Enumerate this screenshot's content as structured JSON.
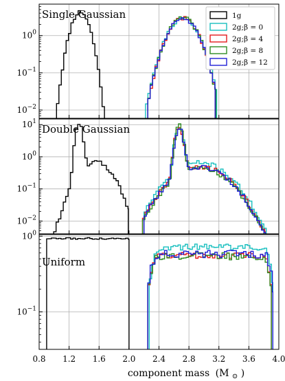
{
  "chart_data": {
    "type": "line",
    "xlabel": "component mass",
    "xlabel_symbol": "(M",
    "xlabel_sub": "⊙",
    "xlabel_close": ")",
    "xlim": [
      0.8,
      4.0
    ],
    "xticks": [
      0.8,
      1.2,
      1.6,
      2.0,
      2.4,
      2.8,
      3.2,
      3.6,
      4.0
    ],
    "xtick_labels": [
      "0.8",
      "1.2",
      "1.6",
      "2.0",
      "2.4",
      "2.8",
      "3.2",
      "3.6",
      "4.0"
    ],
    "yscale": "log",
    "grid": true,
    "sharex": true,
    "legend": {
      "placement": "top-right",
      "entries": [
        {
          "label": "1g",
          "color": "#000000"
        },
        {
          "label": "2g;β = 0",
          "color": "#17bfbf"
        },
        {
          "label": "2g;β = 4",
          "color": "#e31a1c"
        },
        {
          "label": "2g;β = 8",
          "color": "#2e8b22"
        },
        {
          "label": "2g;β = 12",
          "color": "#1f1fd6"
        }
      ]
    },
    "panels": [
      {
        "label": "Single Gaussian",
        "ylim": [
          0.006,
          7
        ],
        "ytick_labels": [
          {
            "value": 1,
            "base": "10",
            "exp": "0"
          },
          {
            "value": 0.1,
            "base": "10",
            "exp": "−1"
          },
          {
            "value": 0.01,
            "base": "10",
            "exp": "−2"
          }
        ],
        "series": [
          {
            "name": "1g",
            "color": "#000000",
            "kind": "gauss",
            "mu": 1.35,
            "sigma": 0.09,
            "amp": 4.4,
            "range": [
              1.0,
              1.72
            ],
            "seed": 11
          },
          {
            "name": "2g;β = 0",
            "color": "#17bfbf",
            "kind": "gauss",
            "mu": 2.72,
            "sigma": 0.15,
            "amp": 2.85,
            "range": [
              2.22,
              3.17
            ],
            "seed": 21
          },
          {
            "name": "2g;β = 4",
            "color": "#e31a1c",
            "kind": "gauss",
            "mu": 2.72,
            "sigma": 0.145,
            "amp": 2.95,
            "range": [
              2.25,
              3.15
            ],
            "seed": 31
          },
          {
            "name": "2g;β = 8",
            "color": "#2e8b22",
            "kind": "gauss",
            "mu": 2.72,
            "sigma": 0.145,
            "amp": 3.0,
            "range": [
              2.25,
              3.16
            ],
            "seed": 41
          },
          {
            "name": "2g;β = 12",
            "color": "#1f1fd6",
            "kind": "gauss",
            "mu": 2.72,
            "sigma": 0.145,
            "amp": 2.9,
            "range": [
              2.25,
              3.15
            ],
            "seed": 51
          }
        ]
      },
      {
        "label": "Double Gaussian",
        "ylim": [
          0.004,
          15
        ],
        "ytick_labels": [
          {
            "value": 10,
            "base": "10",
            "exp": "1"
          },
          {
            "value": 1,
            "base": "10",
            "exp": "0"
          },
          {
            "value": 0.1,
            "base": "10",
            "exp": "−1"
          },
          {
            "value": 0.01,
            "base": "10",
            "exp": "−2"
          }
        ],
        "series": [
          {
            "name": "1g",
            "color": "#000000",
            "kind": "double",
            "mu1": 1.33,
            "s1": 0.035,
            "a1": 11.0,
            "mu2": 1.55,
            "s2": 0.17,
            "a2": 0.7,
            "range": [
              0.93,
              1.99
            ],
            "seed": 61
          },
          {
            "name": "2g;β = 0",
            "color": "#17bfbf",
            "kind": "double",
            "mu1": 2.67,
            "s1": 0.04,
            "a1": 8.0,
            "mu2": 2.95,
            "s2": 0.28,
            "a2": 0.65,
            "range": [
              2.2,
              3.85
            ],
            "seed": 71
          },
          {
            "name": "2g;β = 4",
            "color": "#e31a1c",
            "kind": "double",
            "mu1": 2.67,
            "s1": 0.04,
            "a1": 8.5,
            "mu2": 2.95,
            "s2": 0.28,
            "a2": 0.5,
            "range": [
              2.18,
              3.82
            ],
            "seed": 81
          },
          {
            "name": "2g;β = 8",
            "color": "#2e8b22",
            "kind": "double",
            "mu1": 2.67,
            "s1": 0.04,
            "a1": 9.0,
            "mu2": 2.95,
            "s2": 0.28,
            "a2": 0.45,
            "range": [
              2.18,
              3.8
            ],
            "seed": 91
          },
          {
            "name": "2g;β = 12",
            "color": "#1f1fd6",
            "kind": "double",
            "mu1": 2.67,
            "s1": 0.04,
            "a1": 8.2,
            "mu2": 2.95,
            "s2": 0.28,
            "a2": 0.48,
            "range": [
              2.2,
              3.82
            ],
            "seed": 101
          }
        ]
      },
      {
        "label": "Uniform",
        "ylim": [
          0.032,
          1.05
        ],
        "ytick_labels": [
          {
            "value": 1,
            "base": "10",
            "exp": "0"
          },
          {
            "value": 0.1,
            "base": "10",
            "exp": "−1"
          }
        ],
        "series": [
          {
            "name": "1g",
            "color": "#000000",
            "kind": "uniform",
            "level": 0.93,
            "noise": 0.05,
            "range": [
              0.9,
              2.0
            ],
            "seed": 111
          },
          {
            "name": "2g;β = 0",
            "color": "#17bfbf",
            "kind": "hump",
            "level": 0.72,
            "edge": 0.16,
            "noise": 0.1,
            "range": [
              2.27,
              3.92
            ],
            "seed": 121
          },
          {
            "name": "2g;β = 4",
            "color": "#e31a1c",
            "kind": "hump",
            "level": 0.56,
            "edge": 0.2,
            "noise": 0.1,
            "range": [
              2.25,
              3.9
            ],
            "seed": 131
          },
          {
            "name": "2g;β = 8",
            "color": "#2e8b22",
            "kind": "hump",
            "level": 0.55,
            "edge": 0.23,
            "noise": 0.12,
            "range": [
              2.25,
              3.9
            ],
            "seed": 141
          },
          {
            "name": "2g;β = 12",
            "color": "#1f1fd6",
            "kind": "hump",
            "level": 0.58,
            "edge": 0.22,
            "noise": 0.12,
            "range": [
              2.25,
              3.92
            ],
            "seed": 151
          }
        ]
      }
    ]
  }
}
